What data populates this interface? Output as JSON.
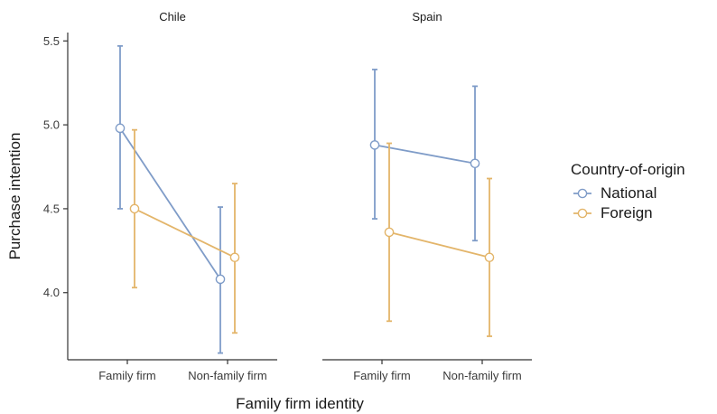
{
  "chart_data": {
    "type": "line",
    "xlabel": "Family firm identity",
    "ylabel": "Purchase intention",
    "ylim": [
      3.6,
      5.55
    ],
    "yticks": [
      "5.5",
      "5.0",
      "4.5",
      "4.0"
    ],
    "categories": [
      "Family firm",
      "Non-family firm"
    ],
    "legend": {
      "title": "Country-of-origin",
      "placement": "right",
      "entries": [
        "National",
        "Foreign"
      ]
    },
    "colors": {
      "National": "#7f9cc8",
      "Foreign": "#e3b56a"
    },
    "panels": [
      {
        "title": "Chile",
        "series": [
          {
            "name": "National",
            "values": [
              4.98,
              4.08
            ],
            "lower": [
              4.5,
              3.64
            ],
            "upper": [
              5.47,
              4.51
            ]
          },
          {
            "name": "Foreign",
            "values": [
              4.5,
              4.21
            ],
            "lower": [
              4.03,
              3.76
            ],
            "upper": [
              4.97,
              4.65
            ]
          }
        ]
      },
      {
        "title": "Spain",
        "series": [
          {
            "name": "National",
            "values": [
              4.88,
              4.77
            ],
            "lower": [
              4.44,
              4.31
            ],
            "upper": [
              5.33,
              5.23
            ]
          },
          {
            "name": "Foreign",
            "values": [
              4.36,
              4.21
            ],
            "lower": [
              3.83,
              3.74
            ],
            "upper": [
              4.89,
              4.68
            ]
          }
        ]
      }
    ]
  }
}
